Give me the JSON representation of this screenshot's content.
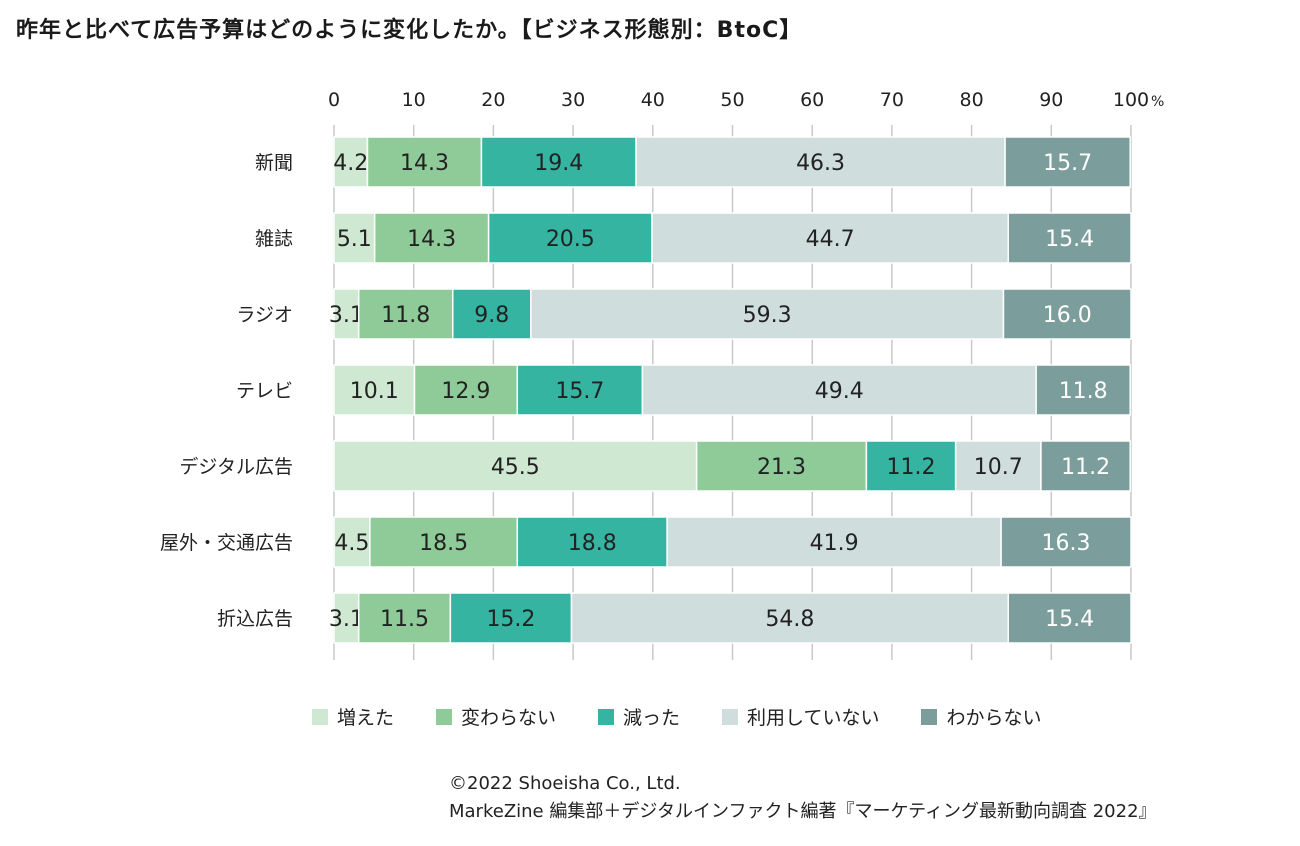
{
  "title": "昨年と比べて広告予算はどのように変化したか。【ビジネス形態別：BtoC】",
  "chart_data": {
    "type": "bar",
    "orientation": "horizontal",
    "stacked": true,
    "categories": [
      "新聞",
      "雑誌",
      "ラジオ",
      "テレビ",
      "デジタル広告",
      "屋外・交通広告",
      "折込広告"
    ],
    "series": [
      {
        "name": "増えた",
        "color": "#cfe8d2",
        "values": [
          4.2,
          5.1,
          3.1,
          10.1,
          45.5,
          4.5,
          3.1
        ]
      },
      {
        "name": "変わらない",
        "color": "#8fcb98",
        "values": [
          14.3,
          14.3,
          11.8,
          12.9,
          21.3,
          18.5,
          11.5
        ]
      },
      {
        "name": "減った",
        "color": "#35b4a2",
        "values": [
          19.4,
          20.5,
          9.8,
          15.7,
          11.2,
          18.8,
          15.2
        ]
      },
      {
        "name": "利用していない",
        "color": "#cfdedd",
        "values": [
          46.3,
          44.7,
          59.3,
          49.4,
          10.7,
          41.9,
          54.8
        ]
      },
      {
        "name": "わからない",
        "color": "#7b9e9c",
        "values": [
          15.7,
          15.4,
          16.0,
          11.8,
          11.2,
          16.3,
          15.4
        ]
      }
    ],
    "x_ticks": [
      "0",
      "10",
      "20",
      "30",
      "40",
      "50",
      "60",
      "70",
      "80",
      "90",
      "100"
    ],
    "x_unit": "%",
    "xlim": [
      0,
      100
    ],
    "grid": true,
    "legend_position": "bottom"
  },
  "footer": {
    "line1": "©2022 Shoeisha Co., Ltd.",
    "line2": "MarkeZine 編集部＋デジタルインファクト編著『マーケティング最新動向調査 2022』"
  }
}
